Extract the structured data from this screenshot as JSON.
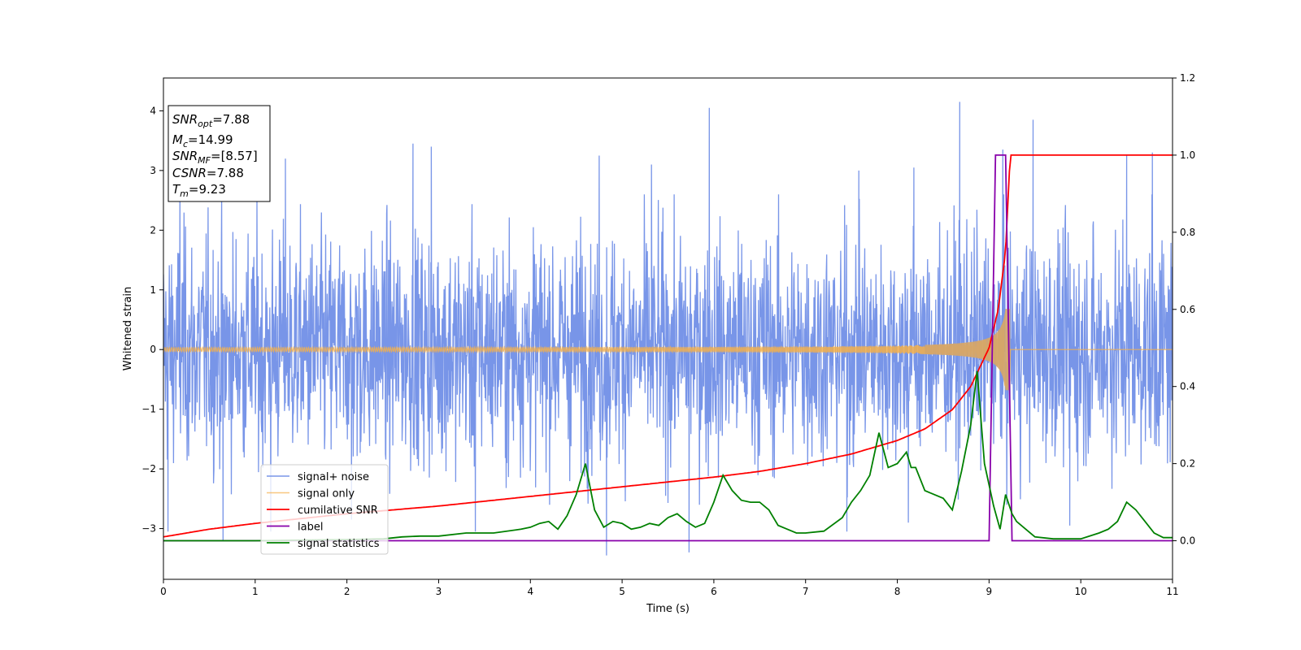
{
  "chart_data": {
    "type": "line",
    "xlabel": "Time (s)",
    "ylabel": "Whitened strain",
    "xlim": [
      0,
      11
    ],
    "ylim": [
      -3.85,
      4.55
    ],
    "y2lim": [
      -0.1,
      1.2
    ],
    "xticks": [
      0,
      1,
      2,
      3,
      4,
      5,
      6,
      7,
      8,
      9,
      10,
      11
    ],
    "yticks": [
      -3,
      -2,
      -1,
      0,
      1,
      2,
      3,
      4
    ],
    "y2ticks": [
      0.0,
      0.2,
      0.4,
      0.6,
      0.8,
      1.0,
      1.2
    ],
    "grid": false,
    "legend_position": "lower-left",
    "info_box": {
      "snr_opt": {
        "base": "SNR",
        "sub": "opt",
        "value": "=7.88"
      },
      "mc": {
        "base": "M",
        "sub": "c",
        "value": "=14.99"
      },
      "snr_mf": {
        "base": "SNR",
        "sub": "MF",
        "value": "=[8.57]"
      },
      "csnr": {
        "base": "CSNR",
        "sub": "",
        "value": "=7.88"
      },
      "tm": {
        "base": "T",
        "sub": "m",
        "value": "=9.23"
      }
    },
    "series": [
      {
        "name": "signal+ noise",
        "color": "#7895e8",
        "axis": "left",
        "description_values": {
          "typical_amplitude": 1.7,
          "max": 4.15,
          "min": -3.5
        },
        "spikes_up": [
          [
            0.18,
            2.9
          ],
          [
            1.33,
            3.2
          ],
          [
            2.72,
            3.45
          ],
          [
            2.92,
            3.4
          ],
          [
            4.75,
            3.25
          ],
          [
            5.32,
            3.1
          ],
          [
            5.95,
            4.05
          ],
          [
            7.58,
            3.0
          ],
          [
            8.18,
            3.05
          ],
          [
            8.68,
            4.15
          ],
          [
            9.15,
            3.35
          ],
          [
            9.48,
            3.85
          ],
          [
            10.5,
            3.25
          ],
          [
            10.78,
            3.3
          ]
        ],
        "spikes_down": [
          [
            0.05,
            -3.05
          ],
          [
            0.65,
            -3.2
          ],
          [
            1.17,
            -3.05
          ],
          [
            2.05,
            -2.85
          ],
          [
            3.4,
            -3.05
          ],
          [
            4.83,
            -3.45
          ],
          [
            5.73,
            -3.4
          ],
          [
            7.45,
            -3.05
          ],
          [
            8.12,
            -2.9
          ],
          [
            9.88,
            -2.95
          ]
        ]
      },
      {
        "name": "signal only",
        "color": "#f5b04a",
        "axis": "left",
        "envelope": {
          "t_merger": 9.23,
          "amp_start": 0.03,
          "amp_at_0": 0.03,
          "amp_5": 0.04,
          "amp_7": 0.06,
          "amp_8": 0.09,
          "amp_8_5": 0.15,
          "amp_9": 0.38,
          "amp_9_2": 0.65
        }
      },
      {
        "name": "cumilative SNR",
        "color": "#ff0000",
        "axis": "right",
        "x": [
          0,
          0.5,
          1,
          2,
          3,
          4,
          5,
          6,
          6.5,
          7,
          7.5,
          8,
          8.3,
          8.6,
          8.8,
          9.0,
          9.1,
          9.18,
          9.23,
          11
        ],
        "y": [
          0.01,
          0.03,
          0.045,
          0.07,
          0.09,
          0.115,
          0.14,
          0.165,
          0.18,
          0.2,
          0.225,
          0.26,
          0.29,
          0.34,
          0.4,
          0.5,
          0.6,
          0.75,
          1.0,
          1.0
        ]
      },
      {
        "name": "label",
        "color": "#8800aa",
        "axis": "right",
        "x": [
          0,
          9.0,
          9.07,
          9.18,
          9.25,
          11
        ],
        "y": [
          0.0,
          0.0,
          1.0,
          1.0,
          0.0,
          0.0
        ]
      },
      {
        "name": "signal statistics",
        "color": "#008000",
        "axis": "right",
        "x": [
          0,
          1.0,
          2.0,
          2.4,
          2.6,
          2.8,
          3.0,
          3.3,
          3.6,
          3.9,
          4.0,
          4.1,
          4.2,
          4.3,
          4.4,
          4.5,
          4.6,
          4.7,
          4.8,
          4.9,
          5.0,
          5.1,
          5.2,
          5.3,
          5.4,
          5.5,
          5.6,
          5.7,
          5.8,
          5.9,
          6.0,
          6.1,
          6.2,
          6.3,
          6.4,
          6.5,
          6.6,
          6.7,
          6.8,
          6.9,
          7.0,
          7.2,
          7.4,
          7.5,
          7.6,
          7.7,
          7.8,
          7.9,
          8.0,
          8.1,
          8.15,
          8.2,
          8.3,
          8.4,
          8.5,
          8.6,
          8.7,
          8.8,
          8.87,
          8.95,
          9.05,
          9.12,
          9.18,
          9.25,
          9.3,
          9.4,
          9.5,
          9.7,
          10.0,
          10.2,
          10.3,
          10.4,
          10.5,
          10.6,
          10.7,
          10.8,
          10.9,
          11.0
        ],
        "y": [
          0.0,
          0.0,
          0.003,
          0.005,
          0.01,
          0.012,
          0.012,
          0.02,
          0.02,
          0.03,
          0.035,
          0.045,
          0.05,
          0.03,
          0.065,
          0.12,
          0.2,
          0.08,
          0.035,
          0.05,
          0.045,
          0.03,
          0.035,
          0.045,
          0.04,
          0.06,
          0.07,
          0.05,
          0.035,
          0.045,
          0.1,
          0.17,
          0.13,
          0.105,
          0.1,
          0.1,
          0.08,
          0.04,
          0.03,
          0.02,
          0.02,
          0.025,
          0.06,
          0.1,
          0.13,
          0.17,
          0.28,
          0.19,
          0.2,
          0.23,
          0.19,
          0.19,
          0.13,
          0.12,
          0.11,
          0.08,
          0.18,
          0.3,
          0.44,
          0.2,
          0.09,
          0.03,
          0.12,
          0.07,
          0.05,
          0.03,
          0.01,
          0.005,
          0.005,
          0.02,
          0.03,
          0.05,
          0.1,
          0.08,
          0.05,
          0.02,
          0.008,
          0.008
        ]
      }
    ]
  }
}
